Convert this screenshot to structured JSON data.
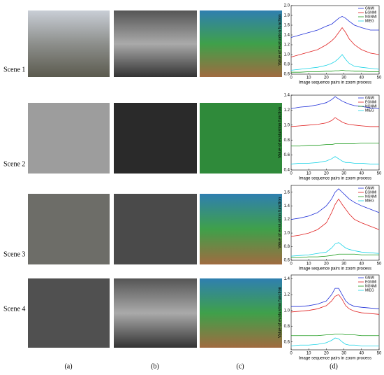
{
  "scenes": [
    "Scene 1",
    "Scene 2",
    "Scene 3",
    "Scene 4"
  ],
  "panels": [
    "(a)",
    "(b)",
    "(c)",
    "(d)"
  ],
  "chart_data": [
    {
      "type": "line",
      "x_label": "Image sequence pairs in zoom process",
      "y_label": "Value of evaluation function",
      "x": [
        0,
        5,
        10,
        15,
        20,
        23,
        25,
        27,
        29,
        31,
        33,
        36,
        40,
        45,
        50
      ],
      "xlim": [
        0,
        50
      ],
      "xticks": [
        0,
        10,
        20,
        30,
        40,
        50
      ],
      "ylim": [
        0.6,
        2.0
      ],
      "yticks": [
        0.6,
        0.8,
        {
          "value": 1,
          "label": "1.0"
        },
        1.2,
        1.4,
        1.6,
        1.8,
        {
          "value": 2,
          "label": "2.0"
        }
      ],
      "legend": "upper right",
      "series": [
        {
          "name": "GNMI",
          "color": "#1f2fd8",
          "values": [
            1.35,
            1.4,
            1.45,
            1.5,
            1.58,
            1.62,
            1.68,
            1.74,
            1.78,
            1.74,
            1.68,
            1.6,
            1.55,
            1.5,
            1.5
          ]
        },
        {
          "name": "EGNMI",
          "color": "#e02020",
          "values": [
            0.95,
            1.0,
            1.05,
            1.1,
            1.2,
            1.28,
            1.35,
            1.45,
            1.55,
            1.45,
            1.32,
            1.2,
            1.1,
            1.03,
            1.0
          ]
        },
        {
          "name": "NGNMI",
          "color": "#1a9a1a",
          "values": [
            0.64,
            0.64,
            0.65,
            0.65,
            0.66,
            0.66,
            0.67,
            0.67,
            0.68,
            0.67,
            0.67,
            0.66,
            0.66,
            0.65,
            0.65
          ]
        },
        {
          "name": "MIEG",
          "color": "#19d3e6",
          "values": [
            0.68,
            0.7,
            0.72,
            0.74,
            0.78,
            0.82,
            0.86,
            0.92,
            1.0,
            0.9,
            0.82,
            0.76,
            0.74,
            0.72,
            0.7
          ]
        }
      ]
    },
    {
      "type": "line",
      "x_label": "Image sequence pairs in zoom process",
      "y_label": "Value of evaluation function",
      "x": [
        0,
        5,
        10,
        15,
        20,
        23,
        25,
        27,
        29,
        31,
        33,
        36,
        40,
        45,
        50
      ],
      "xlim": [
        0,
        50
      ],
      "xticks": [
        0,
        10,
        20,
        30,
        40,
        50
      ],
      "ylim": [
        0.4,
        1.4
      ],
      "yticks": [
        0.4,
        0.6,
        0.8,
        {
          "value": 1,
          "label": "1.0"
        },
        1.2,
        1.4
      ],
      "legend": "upper right",
      "series": [
        {
          "name": "GNMI",
          "color": "#1f2fd8",
          "values": [
            1.22,
            1.24,
            1.25,
            1.27,
            1.3,
            1.34,
            1.38,
            1.35,
            1.32,
            1.3,
            1.28,
            1.26,
            1.25,
            1.23,
            1.22
          ]
        },
        {
          "name": "EGNMI",
          "color": "#e02020",
          "values": [
            0.98,
            0.99,
            1.0,
            1.01,
            1.03,
            1.06,
            1.1,
            1.07,
            1.04,
            1.02,
            1.01,
            1.0,
            0.99,
            0.98,
            0.98
          ]
        },
        {
          "name": "NGNMI",
          "color": "#1a9a1a",
          "values": [
            0.72,
            0.72,
            0.73,
            0.73,
            0.74,
            0.74,
            0.75,
            0.75,
            0.75,
            0.75,
            0.75,
            0.75,
            0.76,
            0.76,
            0.76
          ]
        },
        {
          "name": "MIEG",
          "color": "#19d3e6",
          "values": [
            0.48,
            0.49,
            0.49,
            0.5,
            0.52,
            0.55,
            0.58,
            0.55,
            0.52,
            0.5,
            0.5,
            0.49,
            0.49,
            0.48,
            0.48
          ]
        }
      ]
    },
    {
      "type": "line",
      "x_label": "Image sequence pairs in zoom process",
      "y_label": "Value of evaluation function",
      "x": [
        0,
        5,
        10,
        15,
        20,
        23,
        25,
        27,
        29,
        31,
        33,
        36,
        40,
        45,
        50
      ],
      "xlim": [
        0,
        50
      ],
      "xticks": [
        0,
        10,
        20,
        30,
        40,
        50
      ],
      "ylim": [
        0.6,
        1.7
      ],
      "yticks": [
        0.6,
        0.8,
        {
          "value": 1,
          "label": "1.0"
        },
        1.2,
        1.4,
        1.6
      ],
      "legend": "upper right",
      "series": [
        {
          "name": "GNMI",
          "color": "#1f2fd8",
          "values": [
            1.2,
            1.22,
            1.25,
            1.3,
            1.4,
            1.5,
            1.6,
            1.65,
            1.6,
            1.55,
            1.5,
            1.45,
            1.4,
            1.35,
            1.3
          ]
        },
        {
          "name": "EGNMI",
          "color": "#e02020",
          "values": [
            0.95,
            0.97,
            1.0,
            1.05,
            1.15,
            1.3,
            1.42,
            1.5,
            1.42,
            1.35,
            1.28,
            1.2,
            1.15,
            1.1,
            1.05
          ]
        },
        {
          "name": "NGNMI",
          "color": "#1a9a1a",
          "values": [
            0.64,
            0.64,
            0.65,
            0.65,
            0.66,
            0.67,
            0.68,
            0.69,
            0.69,
            0.69,
            0.69,
            0.69,
            0.68,
            0.68,
            0.68
          ]
        },
        {
          "name": "MIEG",
          "color": "#19d3e6",
          "values": [
            0.66,
            0.67,
            0.68,
            0.7,
            0.72,
            0.78,
            0.84,
            0.86,
            0.82,
            0.78,
            0.76,
            0.74,
            0.72,
            0.71,
            0.7
          ]
        }
      ]
    },
    {
      "type": "line",
      "x_label": "Image sequence pairs in zoom process",
      "y_label": "Value of evaluation function",
      "x": [
        0,
        5,
        10,
        15,
        20,
        23,
        25,
        27,
        29,
        31,
        33,
        36,
        40,
        45,
        50
      ],
      "xlim": [
        0,
        50
      ],
      "xticks": [
        0,
        10,
        20,
        30,
        40,
        50
      ],
      "ylim": [
        0.5,
        1.45
      ],
      "yticks": [
        0.6,
        0.8,
        {
          "value": 1,
          "label": "1.0"
        },
        1.2,
        1.4
      ],
      "legend": "upper right",
      "series": [
        {
          "name": "GNMI",
          "color": "#1f2fd8",
          "values": [
            1.05,
            1.05,
            1.06,
            1.08,
            1.12,
            1.2,
            1.28,
            1.28,
            1.2,
            1.12,
            1.08,
            1.05,
            1.04,
            1.03,
            1.02
          ]
        },
        {
          "name": "EGNMI",
          "color": "#e02020",
          "values": [
            0.98,
            0.99,
            1.0,
            1.02,
            1.06,
            1.12,
            1.18,
            1.2,
            1.14,
            1.06,
            1.02,
            0.99,
            0.97,
            0.96,
            0.95
          ]
        },
        {
          "name": "NGNMI",
          "color": "#1a9a1a",
          "values": [
            0.68,
            0.68,
            0.68,
            0.68,
            0.69,
            0.69,
            0.7,
            0.7,
            0.7,
            0.69,
            0.69,
            0.69,
            0.68,
            0.68,
            0.68
          ]
        },
        {
          "name": "MIEG",
          "color": "#19d3e6",
          "values": [
            0.55,
            0.56,
            0.56,
            0.57,
            0.59,
            0.62,
            0.65,
            0.64,
            0.6,
            0.57,
            0.56,
            0.56,
            0.55,
            0.55,
            0.55
          ]
        }
      ]
    }
  ]
}
